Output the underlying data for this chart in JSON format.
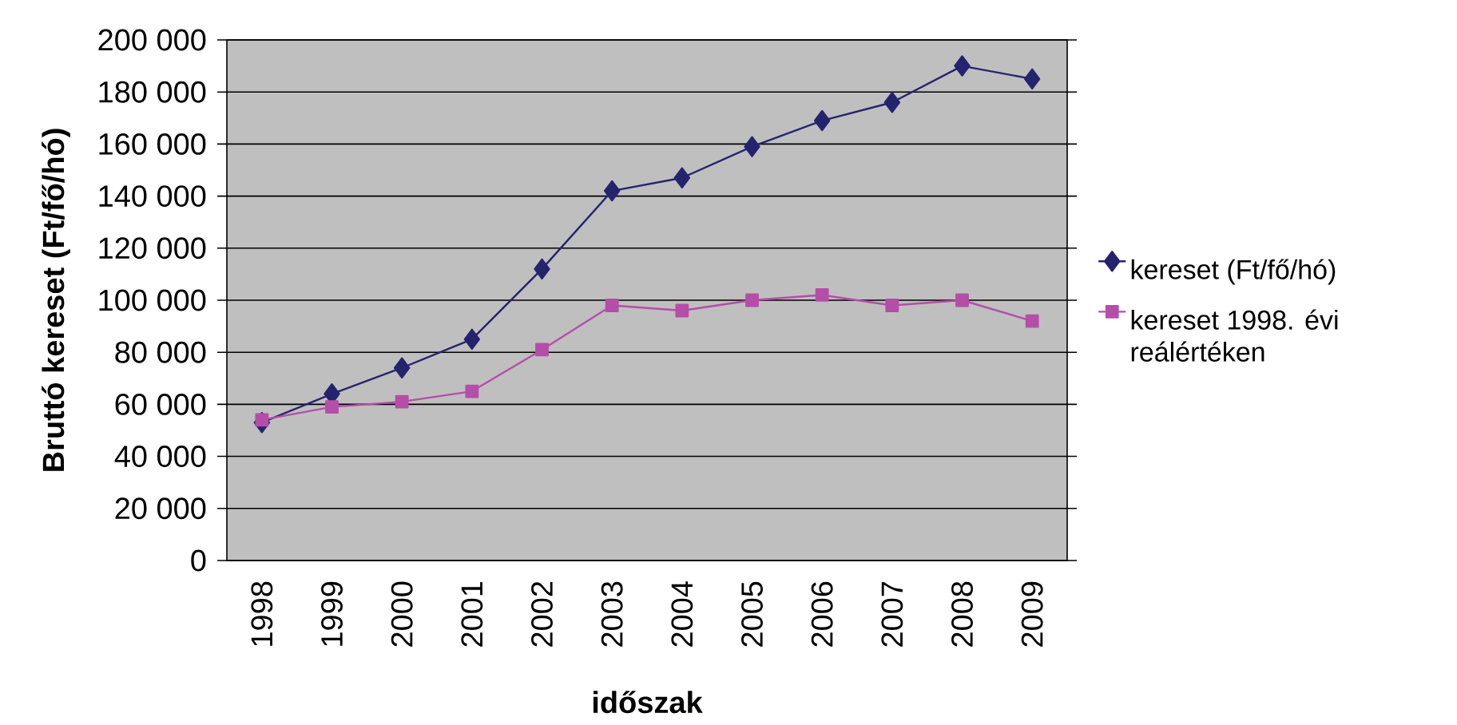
{
  "chart_data": {
    "type": "line",
    "xlabel": "időszak",
    "ylabel": "Bruttó kereset (Ft/fő/hó)",
    "categories": [
      "1998",
      "1999",
      "2000",
      "2001",
      "2002",
      "2003",
      "2004",
      "2005",
      "2006",
      "2007",
      "2008",
      "2009"
    ],
    "series": [
      {
        "name": "kereset (Ft/fő/hó)",
        "color": "#24246e",
        "marker": "diamond",
        "values": [
          53000,
          64000,
          74000,
          85000,
          112000,
          142000,
          147000,
          159000,
          169000,
          176000,
          190000,
          185000
        ]
      },
      {
        "name": "kereset 1998. évi reálértéken",
        "color": "#b44ea8",
        "marker": "square",
        "values": [
          54000,
          59000,
          61000,
          65000,
          81000,
          98000,
          96000,
          100000,
          102000,
          98000,
          100000,
          92000
        ]
      }
    ],
    "ylim": [
      0,
      200000
    ],
    "yticks": [
      {
        "value": 0,
        "label": "0"
      },
      {
        "value": 20000,
        "label": "20 000"
      },
      {
        "value": 40000,
        "label": "40 000"
      },
      {
        "value": 60000,
        "label": "60 000"
      },
      {
        "value": 80000,
        "label": "80 000"
      },
      {
        "value": 100000,
        "label": "100 000"
      },
      {
        "value": 120000,
        "label": "120 000"
      },
      {
        "value": 140000,
        "label": "140 000"
      },
      {
        "value": 160000,
        "label": "160 000"
      },
      {
        "value": 180000,
        "label": "180 000"
      },
      {
        "value": 200000,
        "label": "200 000"
      }
    ],
    "grid": "y",
    "legend": "right",
    "line_style": "solid"
  }
}
